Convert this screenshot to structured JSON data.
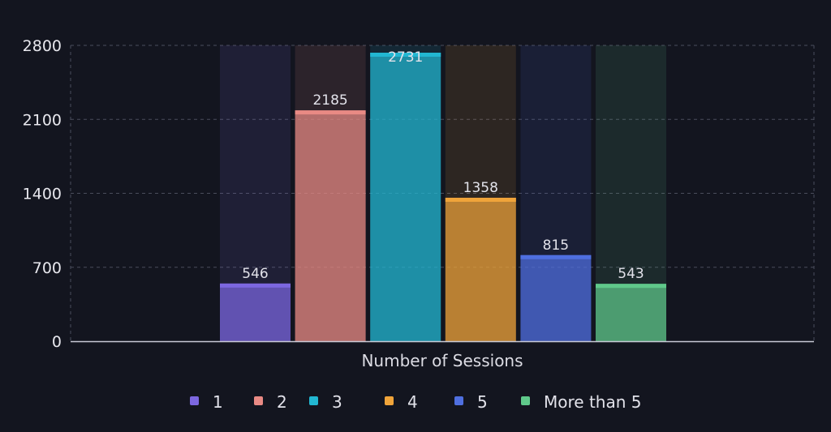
{
  "chart_data": {
    "type": "bar",
    "xlabel": "Number of Sessions",
    "ylim": [
      0,
      2800
    ],
    "yticks": [
      0,
      700,
      1400,
      2100,
      2800
    ],
    "grid": true,
    "legend_position": "bottom",
    "series": [
      {
        "name": "1",
        "value": 546,
        "color": "#7c67e0"
      },
      {
        "name": "2",
        "value": 2185,
        "color": "#e98a84"
      },
      {
        "name": "3",
        "value": 2731,
        "color": "#22b7d2"
      },
      {
        "name": "4",
        "value": 1358,
        "color": "#f0a43a"
      },
      {
        "name": "5",
        "value": 815,
        "color": "#4f6fe0"
      },
      {
        "name": "More than 5",
        "value": 543,
        "color": "#5fc98a"
      }
    ]
  }
}
